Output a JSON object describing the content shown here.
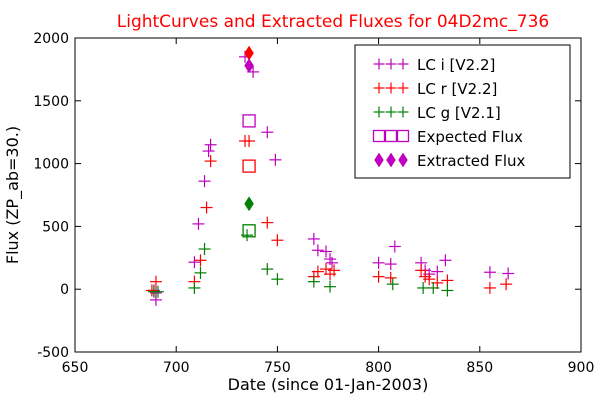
{
  "chart_data": {
    "type": "scatter",
    "title": "LightCurves and Extracted Fluxes for 04D2mc_736",
    "xlabel": "Date (since 01-Jan-2003)",
    "ylabel": "Flux (ZP_ab=30.)",
    "xlim": [
      650,
      900
    ],
    "ylim": [
      -500,
      2000
    ],
    "x_ticks": [
      "650",
      "700",
      "750",
      "800",
      "850",
      "900"
    ],
    "y_ticks": [
      "-500",
      "0",
      "500",
      "1000",
      "1500",
      "2000"
    ],
    "grid": false,
    "legend_position": "top-right",
    "series": [
      {
        "name": "LC i [V2.2]",
        "marker": "plus",
        "color": "#bf00bf",
        "points": [
          [
            689,
            -10
          ],
          [
            690,
            -85
          ],
          [
            690,
            -30
          ],
          [
            709,
            215
          ],
          [
            711,
            520
          ],
          [
            714,
            860
          ],
          [
            716,
            1100
          ],
          [
            717,
            1150
          ],
          [
            734,
            1850
          ],
          [
            738,
            1730
          ],
          [
            745,
            1250
          ],
          [
            749,
            1030
          ],
          [
            768,
            400
          ],
          [
            770,
            310
          ],
          [
            774,
            300
          ],
          [
            776,
            240
          ],
          [
            777,
            210
          ],
          [
            800,
            210
          ],
          [
            806,
            200
          ],
          [
            808,
            340
          ],
          [
            821,
            210
          ],
          [
            823,
            150
          ],
          [
            825,
            120
          ],
          [
            829,
            140
          ],
          [
            833,
            230
          ],
          [
            855,
            135
          ],
          [
            864,
            125
          ]
        ]
      },
      {
        "name": "LC r [V2.2]",
        "marker": "plus",
        "color": "#ff0000",
        "points": [
          [
            688,
            -10
          ],
          [
            690,
            60
          ],
          [
            709,
            60
          ],
          [
            712,
            230
          ],
          [
            715,
            650
          ],
          [
            717,
            1020
          ],
          [
            734,
            1180
          ],
          [
            736,
            1180
          ],
          [
            745,
            530
          ],
          [
            750,
            390
          ],
          [
            768,
            100
          ],
          [
            770,
            140
          ],
          [
            774,
            160
          ],
          [
            776,
            120
          ],
          [
            778,
            150
          ],
          [
            800,
            100
          ],
          [
            806,
            90
          ],
          [
            821,
            150
          ],
          [
            823,
            100
          ],
          [
            825,
            80
          ],
          [
            829,
            50
          ],
          [
            834,
            70
          ],
          [
            855,
            10
          ],
          [
            863,
            40
          ]
        ]
      },
      {
        "name": "LC g [V2.1]",
        "marker": "plus",
        "color": "#007f00",
        "points": [
          [
            689,
            -20
          ],
          [
            691,
            -20
          ],
          [
            709,
            10
          ],
          [
            712,
            130
          ],
          [
            714,
            320
          ],
          [
            735,
            430
          ],
          [
            745,
            160
          ],
          [
            750,
            80
          ],
          [
            768,
            60
          ],
          [
            776,
            20
          ],
          [
            807,
            40
          ],
          [
            822,
            10
          ],
          [
            827,
            10
          ],
          [
            834,
            -10
          ]
        ]
      },
      {
        "name": "Expected Flux",
        "marker": "open-square",
        "color": "#bf00bf",
        "points_by_color": [
          {
            "color": "#bf00bf",
            "x": 736,
            "y": 1340
          },
          {
            "color": "#ff0000",
            "x": 736,
            "y": 980
          },
          {
            "color": "#007f00",
            "x": 736,
            "y": 465
          }
        ]
      },
      {
        "name": "Extracted Flux",
        "marker": "diamond",
        "color": "#bf00bf",
        "points_by_color": [
          {
            "color": "#ff0000",
            "x": 736,
            "y": 1880
          },
          {
            "color": "#bf00bf",
            "x": 736,
            "y": 1780
          },
          {
            "color": "#007f00",
            "x": 736,
            "y": 680
          }
        ]
      }
    ]
  }
}
